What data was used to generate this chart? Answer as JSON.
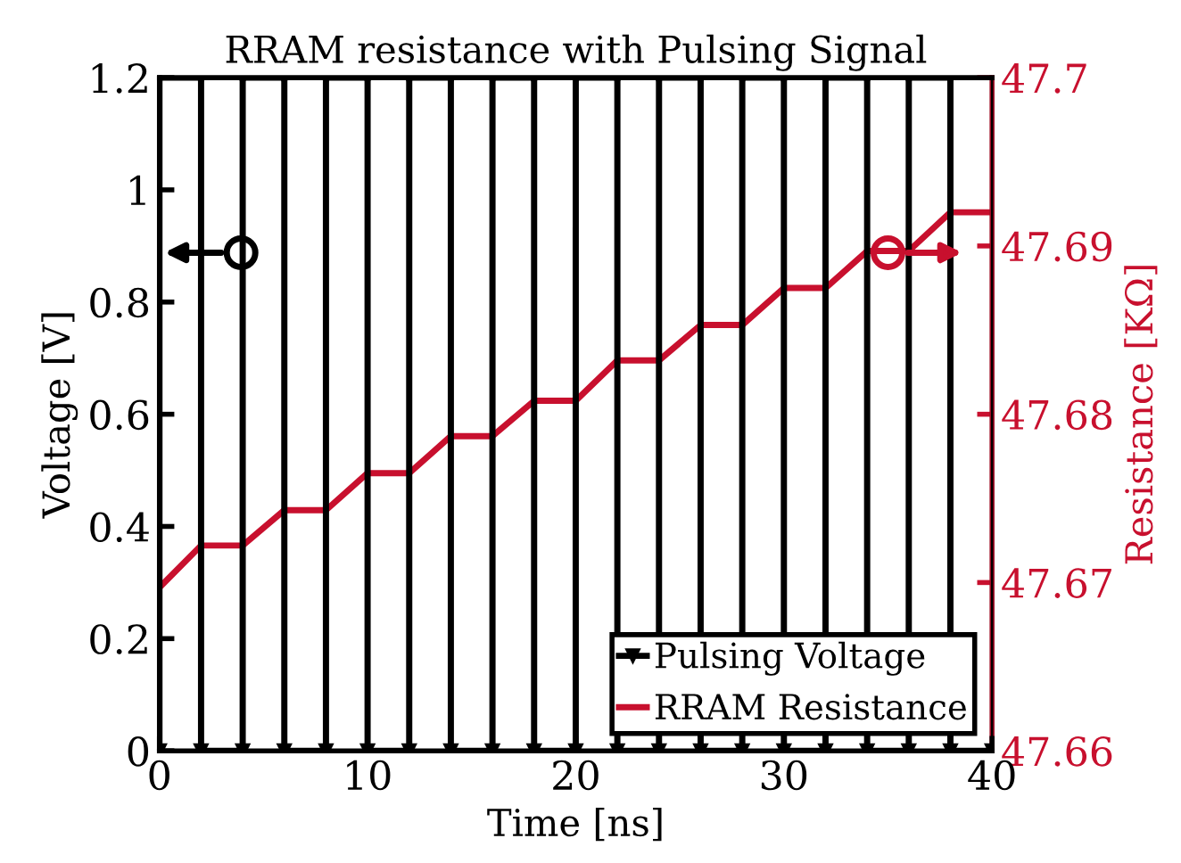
{
  "chart_data": {
    "type": "line",
    "title": "RRAM resistance with Pulsing Signal",
    "xlabel": "Time [ns]",
    "ylabel": "Voltage [V]",
    "y2label": "Resistance [KΩ]",
    "xlim": [
      0,
      40
    ],
    "xticks": [
      0,
      10,
      20,
      30,
      40
    ],
    "ylim": [
      0,
      1.2
    ],
    "yticks": [
      0,
      0.2,
      0.4,
      0.6,
      0.8,
      1,
      1.2
    ],
    "y2lim": [
      47.66,
      47.7
    ],
    "y2ticks": [
      47.66,
      47.67,
      47.68,
      47.69,
      47.7
    ],
    "grid": false,
    "legend": "bottom right",
    "line_style": "solid",
    "series": [
      {
        "name": "Pulsing Voltage",
        "color": "#000000",
        "marker": "triangle",
        "x": [
          0,
          0,
          2,
          2,
          4,
          4,
          6,
          6,
          8,
          8,
          10,
          10,
          12,
          12,
          14,
          14,
          16,
          16,
          18,
          18,
          20,
          20,
          22,
          22,
          24,
          24,
          26,
          26,
          28,
          28,
          30,
          30,
          32,
          32,
          34,
          34,
          36,
          36,
          38,
          38,
          40
        ],
        "values": [
          0,
          1.2,
          1.2,
          0,
          0,
          1.2,
          1.2,
          0,
          0,
          1.2,
          1.2,
          0,
          0,
          1.2,
          1.2,
          0,
          0,
          1.2,
          1.2,
          0,
          0,
          1.2,
          1.2,
          0,
          0,
          1.2,
          1.2,
          0,
          0,
          1.2,
          1.2,
          0,
          0,
          1.2,
          1.2,
          0,
          0,
          1.2,
          1.2,
          0,
          0
        ]
      },
      {
        "name": "RRAM Resistance",
        "color": "#c8102e",
        "marker": "none",
        "axis": "y2",
        "x": [
          0,
          2,
          4,
          6,
          8,
          10,
          12,
          14,
          16,
          18,
          20,
          22,
          24,
          26,
          28,
          30,
          32,
          34,
          36,
          38,
          40
        ],
        "values": [
          47.6697,
          47.6722,
          47.6722,
          47.6743,
          47.6743,
          47.6765,
          47.6765,
          47.6787,
          47.6787,
          47.6808,
          47.6808,
          47.6832,
          47.6832,
          47.6853,
          47.6853,
          47.6875,
          47.6875,
          47.6897,
          47.6897,
          47.692,
          47.692
        ]
      }
    ]
  }
}
